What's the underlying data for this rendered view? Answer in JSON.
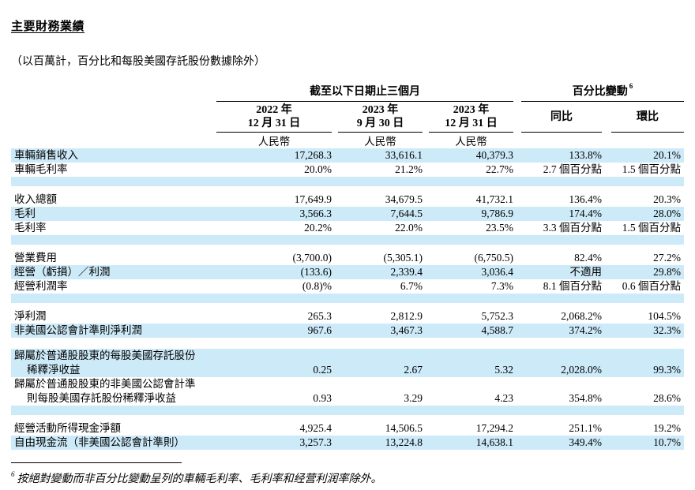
{
  "page": {
    "title": "主要財務業績",
    "subtitle": "（以百萬計，百分比和每股美國存託股份數據除外）"
  },
  "table": {
    "period_group_header": "截至以下日期止三個月",
    "change_group_header": "百分比變動",
    "change_group_footnote_ref": "6",
    "period_columns": [
      {
        "year_line": "2022 年",
        "date_line": "12 月 31 日",
        "currency": "人民幣"
      },
      {
        "year_line": "2023 年",
        "date_line": "9 月 30 日",
        "currency": "人民幣"
      },
      {
        "year_line": "2023 年",
        "date_line": "12 月 31 日",
        "currency": "人民幣"
      }
    ],
    "change_columns": [
      {
        "label": "同比"
      },
      {
        "label": "環比"
      }
    ],
    "rows": [
      {
        "type": "data",
        "shade": "blue",
        "label": "車輛銷售收入",
        "values": [
          "17,268.3",
          "33,616.1",
          "40,379.3",
          "133.8%",
          "20.1%"
        ]
      },
      {
        "type": "data",
        "shade": "white",
        "label": "車輛毛利率",
        "values": [
          "20.0%",
          "21.2%",
          "22.7%",
          "2.7 個百分點",
          "1.5 個百分點"
        ]
      },
      {
        "type": "spacer",
        "shade": "blue"
      },
      {
        "type": "spacer",
        "shade": "white"
      },
      {
        "type": "data",
        "shade": "white",
        "label": "收入總額",
        "values": [
          "17,649.9",
          "34,679.5",
          "41,732.1",
          "136.4%",
          "20.3%"
        ]
      },
      {
        "type": "data",
        "shade": "blue",
        "label": "毛利",
        "values": [
          "3,566.3",
          "7,644.5",
          "9,786.9",
          "174.4%",
          "28.0%"
        ]
      },
      {
        "type": "data",
        "shade": "white",
        "label": "毛利率",
        "values": [
          "20.2%",
          "22.0%",
          "23.5%",
          "3.3 個百分點",
          "1.5 個百分點"
        ]
      },
      {
        "type": "spacer",
        "shade": "blue"
      },
      {
        "type": "spacer",
        "shade": "white"
      },
      {
        "type": "data",
        "shade": "white",
        "label": "營業費用",
        "values": [
          "(3,700.0)",
          "(5,305.1)",
          "(6,750.5)",
          "82.4%",
          "27.2%"
        ]
      },
      {
        "type": "data",
        "shade": "blue",
        "label": "經營（虧損）／利潤",
        "values": [
          "(133.6)",
          "2,339.4",
          "3,036.4",
          "不適用",
          "29.8%"
        ]
      },
      {
        "type": "data",
        "shade": "white",
        "label": "經營利潤率",
        "values": [
          "(0.8)%",
          "6.7%",
          "7.3%",
          "8.1 個百分點",
          "0.6 個百分點"
        ]
      },
      {
        "type": "spacer",
        "shade": "blue"
      },
      {
        "type": "spacer",
        "shade": "white"
      },
      {
        "type": "data",
        "shade": "white",
        "label": "淨利潤",
        "values": [
          "265.3",
          "2,812.9",
          "5,752.3",
          "2,068.2%",
          "104.5%"
        ]
      },
      {
        "type": "data",
        "shade": "blue",
        "label": "非美國公認會計準則淨利潤",
        "values": [
          "967.6",
          "3,467.3",
          "4,588.7",
          "374.2%",
          "32.3%"
        ]
      },
      {
        "type": "spacer",
        "shade": "white",
        "tall": true
      },
      {
        "type": "data",
        "shade": "blue",
        "label": "歸屬於普通股股東的每股美國存託股份",
        "label2": "稀釋淨收益",
        "values": [
          "0.25",
          "2.67",
          "5.32",
          "2,028.0%",
          "99.3%"
        ]
      },
      {
        "type": "data",
        "shade": "white",
        "label": "歸屬於普通股股東的非美國公認會計準",
        "label2": "則每股美國存託股份稀釋淨收益",
        "values": [
          "0.93",
          "3.29",
          "4.23",
          "354.8%",
          "28.6%"
        ]
      },
      {
        "type": "spacer",
        "shade": "blue"
      },
      {
        "type": "spacer",
        "shade": "white"
      },
      {
        "type": "data",
        "shade": "white",
        "label": "經營活動所得現金淨額",
        "values": [
          "4,925.4",
          "14,506.5",
          "17,294.2",
          "251.1%",
          "19.2%"
        ]
      },
      {
        "type": "data",
        "shade": "blue",
        "label": "自由現金流（非美國公認會計準則）",
        "values": [
          "3,257.3",
          "13,224.8",
          "14,638.1",
          "349.4%",
          "10.7%"
        ]
      }
    ]
  },
  "footnote": {
    "ref": "6",
    "text": "按絕對變動而非百分比變動呈列的車輛毛利率、毛利率和经营利润率除外。"
  },
  "colors": {
    "row_highlight": "#cdeaf8",
    "text": "#000000",
    "rule": "#000000"
  }
}
